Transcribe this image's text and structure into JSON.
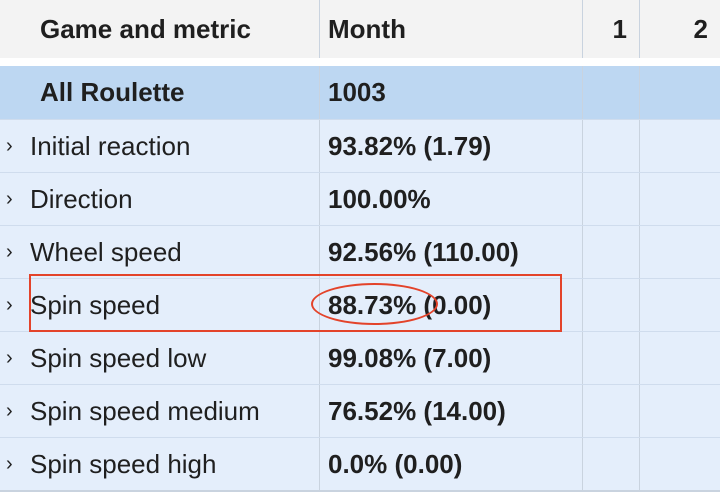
{
  "header": {
    "metric_col": "Game and metric",
    "month_col": "Month",
    "day1_col": "1",
    "day2_col": "2"
  },
  "group": {
    "label": "All Roulette",
    "month": "1003"
  },
  "rows": [
    {
      "label": "Initial reaction",
      "month": "93.82% (1.79)"
    },
    {
      "label": "Direction",
      "month": "100.00%"
    },
    {
      "label": "Wheel speed",
      "month": "92.56% (110.00)"
    },
    {
      "label": "Spin speed",
      "month": "88.73% (0.00)"
    },
    {
      "label": "Spin speed low",
      "month": "99.08% (7.00)"
    },
    {
      "label": "Spin speed medium",
      "month": "76.52% (14.00)"
    },
    {
      "label": "Spin speed high",
      "month": "0.0% (0.00)"
    }
  ],
  "icons": {
    "expand": "chevron-right-icon"
  },
  "colors": {
    "header_bg": "#f3f3f3",
    "group_bg": "#bdd7f2",
    "row_bg": "#e4eefb",
    "highlight": "#e3432a"
  }
}
